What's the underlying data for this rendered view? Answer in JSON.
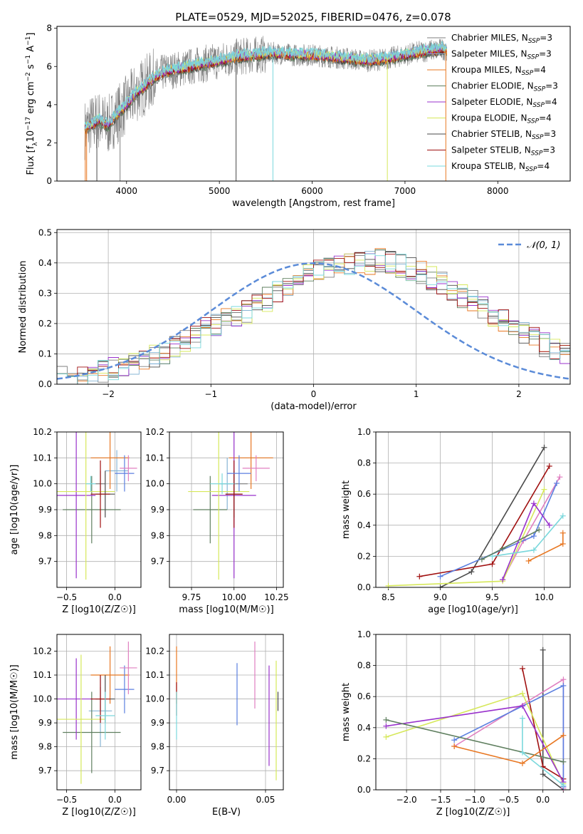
{
  "figure": {
    "title": "PLATE=0529, MJD=52025, FIBERID=0476, z=0.078"
  },
  "colors": {
    "Chabrier MILES": "#7f7f7f",
    "Salpeter MILES": "#87b5d5",
    "Kroupa MILES": "#e87722",
    "Chabrier ELODIE": "#5f7f5f",
    "Salpeter ELODIE": "#9932cc",
    "Kroupa ELODIE": "#d6e85a",
    "Chabrier STELIB": "#4a4a4a",
    "Salpeter STELIB": "#a01010",
    "Kroupa STELIB": "#7ad8dc",
    "extra_blue": "#5b7fe0",
    "extra_pink": "#e07fc0",
    "normal": "#5b8bd8"
  },
  "chart_data": [
    {
      "id": "spectrum",
      "type": "line",
      "xlabel": "wavelength [Angstrom, rest frame]",
      "ylabel": "Flux [f_λ10^-17 erg cm^-2 s^-1 A^-1]",
      "xlim": [
        3250,
        8780
      ],
      "ylim": [
        0,
        8.1
      ],
      "xticks": [
        4000,
        5000,
        6000,
        7000,
        8000
      ],
      "yticks": [
        0,
        2,
        4,
        6,
        8
      ],
      "wavelength_range": [
        3550,
        7450
      ],
      "continuum": {
        "x": [
          3550,
          3600,
          3700,
          3800,
          3900,
          4000,
          4100,
          4200,
          4300,
          4400,
          4600,
          4800,
          5000,
          5200,
          5400,
          5600,
          5800,
          6000,
          6200,
          6400,
          6600,
          6800,
          7000,
          7200,
          7400
        ],
        "y": [
          2.7,
          2.9,
          3.2,
          2.9,
          3.5,
          4.0,
          4.6,
          5.0,
          5.4,
          5.7,
          5.9,
          6.1,
          6.3,
          6.5,
          6.6,
          6.7,
          6.6,
          6.6,
          6.5,
          6.4,
          6.3,
          6.4,
          6.6,
          6.8,
          6.9
        ]
      },
      "legend_position": "upper right",
      "legend": [
        {
          "label": "Chabrier MILES, N",
          "sub": "SSP",
          "tail": "=3",
          "key": "Chabrier MILES"
        },
        {
          "label": "Salpeter MILES, N",
          "sub": "SSP",
          "tail": "=3",
          "key": "Salpeter MILES"
        },
        {
          "label": "Kroupa MILES, N",
          "sub": "SSP",
          "tail": "=4",
          "key": "Kroupa MILES"
        },
        {
          "label": "Chabrier ELODIE, N",
          "sub": "SSP",
          "tail": "=3",
          "key": "Chabrier ELODIE"
        },
        {
          "label": "Salpeter ELODIE, N",
          "sub": "SSP",
          "tail": "=4",
          "key": "Salpeter ELODIE"
        },
        {
          "label": "Kroupa ELODIE, N",
          "sub": "SSP",
          "tail": "=4",
          "key": "Kroupa ELODIE"
        },
        {
          "label": "Chabrier STELIB, N",
          "sub": "SSP",
          "tail": "=3",
          "key": "Chabrier STELIB"
        },
        {
          "label": "Salpeter STELIB, N",
          "sub": "SSP",
          "tail": "=3",
          "key": "Salpeter STELIB"
        },
        {
          "label": "Kroupa STELIB, N",
          "sub": "SSP",
          "tail": "=4",
          "key": "Kroupa STELIB"
        }
      ]
    },
    {
      "id": "residuals",
      "type": "histogram",
      "xlabel": "(data-model)/error",
      "ylabel": "Normed distribution",
      "xlim": [
        -2.5,
        2.5
      ],
      "ylim": [
        0,
        0.51
      ],
      "xticks": [
        -2,
        -1,
        0,
        1,
        2
      ],
      "yticks": [
        0.0,
        0.1,
        0.2,
        0.3,
        0.4,
        0.5
      ],
      "grid": true,
      "bin_width": 0.1,
      "bins_start": -2.5,
      "envelope": [
        0.02,
        0.02,
        0.03,
        0.035,
        0.04,
        0.05,
        0.06,
        0.07,
        0.08,
        0.09,
        0.1,
        0.12,
        0.14,
        0.16,
        0.18,
        0.2,
        0.21,
        0.23,
        0.24,
        0.26,
        0.28,
        0.3,
        0.32,
        0.34,
        0.36,
        0.37,
        0.38,
        0.39,
        0.39,
        0.4,
        0.4,
        0.41,
        0.4,
        0.39,
        0.38,
        0.37,
        0.35,
        0.33,
        0.31,
        0.29,
        0.27,
        0.25,
        0.23,
        0.21,
        0.19,
        0.17,
        0.15,
        0.13,
        0.11,
        0.1
      ],
      "normal": {
        "label": "𝒩(0, 1)",
        "mu": 0,
        "sigma": 1
      },
      "legend_position": "upper right"
    },
    {
      "id": "age_vs_Z",
      "type": "errorbar",
      "xlabel": "Z [log10(Z/Z☉)]",
      "ylabel": "age  [log10(age/yr)]",
      "xlim": [
        -0.6,
        0.27
      ],
      "ylim": [
        9.6,
        10.2
      ],
      "xticks": [
        -0.5,
        0.0
      ],
      "xticklabels": [
        "−0.5",
        "0.0"
      ],
      "yticks": [
        9.7,
        9.8,
        9.9,
        10.0,
        10.1,
        10.2
      ],
      "grid": true,
      "points": [
        {
          "key": "Chabrier MILES",
          "x": -0.15,
          "xerr": 0.05,
          "y": 10.0,
          "yerr": 0.05
        },
        {
          "key": "Salpeter MILES",
          "x": 0.02,
          "xerr": 0.12,
          "y": 10.05,
          "yerr": 0.08
        },
        {
          "key": "Kroupa MILES",
          "x": -0.05,
          "xerr": 0.2,
          "y": 10.1,
          "yerr": 0.12
        },
        {
          "key": "Chabrier ELODIE",
          "x": -0.24,
          "xerr": 0.3,
          "y": 9.9,
          "yerr": 0.13
        },
        {
          "key": "Salpeter ELODIE",
          "x": -0.4,
          "xerr": 0.2,
          "y": 9.955,
          "yerr": 0.32
        },
        {
          "key": "Kroupa ELODIE",
          "x": -0.3,
          "xerr": 0.3,
          "y": 9.97,
          "yerr": 0.34
        },
        {
          "key": "Chabrier STELIB",
          "x": -0.1,
          "xerr": 0.1,
          "y": 9.96,
          "yerr": 0.09
        },
        {
          "key": "Salpeter STELIB",
          "x": -0.15,
          "xerr": 0.1,
          "y": 9.96,
          "yerr": 0.13
        },
        {
          "key": "Kroupa STELIB",
          "x": -0.25,
          "xerr": 0.05,
          "y": 10.0,
          "yerr": 0.03
        },
        {
          "key": "extra_blue",
          "x": 0.1,
          "xerr": 0.1,
          "y": 10.04,
          "yerr": 0.07
        },
        {
          "key": "extra_pink",
          "x": 0.14,
          "xerr": 0.09,
          "y": 10.06,
          "yerr": 0.05
        }
      ]
    },
    {
      "id": "age_vs_mass",
      "type": "errorbar",
      "xlabel": "mass [log10(M/M☉)]",
      "ylabel": "",
      "xlim": [
        9.62,
        10.29
      ],
      "ylim": [
        9.6,
        10.2
      ],
      "xticks": [
        9.75,
        10.0,
        10.25
      ],
      "xticklabels": [
        "9.75",
        "10.00",
        "10.25"
      ],
      "yticks": [
        9.7,
        9.8,
        9.9,
        10.0,
        10.1,
        10.2
      ],
      "grid": true,
      "points": [
        {
          "key": "Chabrier MILES",
          "x": 10.0,
          "xerr": 0.08,
          "y": 10.0,
          "yerr": 0.05
        },
        {
          "key": "Salpeter MILES",
          "x": 9.96,
          "xerr": 0.05,
          "y": 10.0,
          "yerr": 0.1
        },
        {
          "key": "Kroupa MILES",
          "x": 10.1,
          "xerr": 0.13,
          "y": 10.1,
          "yerr": 0.12
        },
        {
          "key": "Chabrier ELODIE",
          "x": 9.86,
          "xerr": 0.1,
          "y": 9.9,
          "yerr": 0.13
        },
        {
          "key": "Salpeter ELODIE",
          "x": 10.0,
          "xerr": 0.13,
          "y": 9.955,
          "yerr": 0.32
        },
        {
          "key": "Kroupa ELODIE",
          "x": 9.91,
          "xerr": 0.18,
          "y": 9.97,
          "yerr": 0.34
        },
        {
          "key": "Chabrier STELIB",
          "x": 10.0,
          "xerr": 0.05,
          "y": 9.96,
          "yerr": 0.09
        },
        {
          "key": "Salpeter STELIB",
          "x": 10.0,
          "xerr": 0.05,
          "y": 9.96,
          "yerr": 0.13
        },
        {
          "key": "Kroupa STELIB",
          "x": 9.93,
          "xerr": 0.07,
          "y": 10.0,
          "yerr": 0.04
        },
        {
          "key": "extra_blue",
          "x": 10.03,
          "xerr": 0.07,
          "y": 10.04,
          "yerr": 0.07
        },
        {
          "key": "extra_pink",
          "x": 10.13,
          "xerr": 0.08,
          "y": 10.06,
          "yerr": 0.05
        }
      ]
    },
    {
      "id": "mass_weight_vs_age",
      "type": "line",
      "xlabel": "age  [log10(age/yr)]",
      "ylabel": "mass weight",
      "xlim": [
        8.38,
        10.25
      ],
      "ylim": [
        0,
        1.0
      ],
      "xticks": [
        8.5,
        9.0,
        9.5,
        10.0
      ],
      "xticklabels": [
        "8.5",
        "9.0",
        "9.5",
        "10.0"
      ],
      "yticks": [
        0.0,
        0.2,
        0.4,
        0.6,
        0.8,
        1.0
      ],
      "grid": true,
      "series": [
        {
          "key": "Chabrier STELIB",
          "x": [
            9.0,
            9.3,
            10.0
          ],
          "y": [
            0.0,
            0.1,
            0.9
          ]
        },
        {
          "key": "Salpeter STELIB",
          "x": [
            8.8,
            9.5,
            10.05
          ],
          "y": [
            0.07,
            0.15,
            0.78
          ]
        },
        {
          "key": "extra_pink",
          "x": [
            9.6,
            9.8,
            10.15
          ],
          "y": [
            0.05,
            0.3,
            0.71
          ]
        },
        {
          "key": "extra_blue",
          "x": [
            9.0,
            9.9,
            10.12
          ],
          "y": [
            0.07,
            0.33,
            0.67
          ]
        },
        {
          "key": "Kroupa ELODIE",
          "x": [
            8.5,
            9.6,
            10.0
          ],
          "y": [
            0.01,
            0.04,
            0.63
          ]
        },
        {
          "key": "Salpeter ELODIE",
          "x": [
            9.6,
            9.9,
            10.05
          ],
          "y": [
            0.05,
            0.54,
            0.4
          ]
        },
        {
          "key": "Kroupa STELIB",
          "x": [
            9.5,
            9.9,
            10.18
          ],
          "y": [
            0.2,
            0.24,
            0.46
          ]
        },
        {
          "key": "Chabrier ELODIE",
          "x": [
            9.4,
            9.6,
            9.95
          ],
          "y": [
            0.18,
            0.25,
            0.37
          ]
        },
        {
          "key": "Kroupa MILES",
          "x": [
            9.85,
            10.18,
            10.18
          ],
          "y": [
            0.17,
            0.28,
            0.35
          ]
        }
      ]
    },
    {
      "id": "mass_vs_Z",
      "type": "errorbar",
      "xlabel": "Z [log10(Z/Z☉)]",
      "ylabel": "mass [log10(M/M☉)]",
      "xlim": [
        -0.6,
        0.27
      ],
      "ylim": [
        9.62,
        10.27
      ],
      "xticks": [
        -0.5,
        0.0
      ],
      "xticklabels": [
        "−0.5",
        "0.0"
      ],
      "yticks": [
        9.7,
        9.8,
        9.9,
        10.0,
        10.1,
        10.2
      ],
      "grid": true,
      "points": [
        {
          "key": "Chabrier MILES",
          "x": -0.15,
          "xerr": 0.05,
          "y": 10.0,
          "yerr": 0.05
        },
        {
          "key": "Salpeter MILES",
          "x": -0.15,
          "xerr": 0.12,
          "y": 9.95,
          "yerr": 0.15
        },
        {
          "key": "Kroupa MILES",
          "x": -0.05,
          "xerr": 0.2,
          "y": 10.1,
          "yerr": 0.12
        },
        {
          "key": "Chabrier ELODIE",
          "x": -0.24,
          "xerr": 0.3,
          "y": 9.86,
          "yerr": 0.17
        },
        {
          "key": "Salpeter ELODIE",
          "x": -0.4,
          "xerr": 0.2,
          "y": 10.0,
          "yerr": 0.17
        },
        {
          "key": "Kroupa ELODIE",
          "x": -0.35,
          "xerr": 0.25,
          "y": 9.915,
          "yerr": 0.27
        },
        {
          "key": "Chabrier STELIB",
          "x": -0.1,
          "xerr": 0.1,
          "y": 10.0,
          "yerr": 0.1
        },
        {
          "key": "Salpeter STELIB",
          "x": -0.15,
          "xerr": 0.1,
          "y": 10.0,
          "yerr": 0.1
        },
        {
          "key": "Kroupa STELIB",
          "x": -0.1,
          "xerr": 0.1,
          "y": 9.93,
          "yerr": 0.1
        },
        {
          "key": "extra_blue",
          "x": 0.1,
          "xerr": 0.1,
          "y": 10.04,
          "yerr": 0.1
        },
        {
          "key": "extra_pink",
          "x": 0.14,
          "xerr": 0.09,
          "y": 10.13,
          "yerr": 0.11
        }
      ]
    },
    {
      "id": "mass_vs_ebv",
      "type": "errorbar",
      "xlabel": "E(B-V)",
      "ylabel": "",
      "xlim": [
        -0.004,
        0.06
      ],
      "ylim": [
        9.62,
        10.27
      ],
      "xticks": [
        0.0,
        0.05
      ],
      "xticklabels": [
        "0.00",
        "0.05"
      ],
      "yticks": [
        9.7,
        9.8,
        9.9,
        10.0,
        10.1,
        10.2
      ],
      "grid": true,
      "points": [
        {
          "key": "Kroupa MILES",
          "x": 0.0,
          "xerr": 0,
          "y": 10.1,
          "yerr": 0.12
        },
        {
          "key": "Salpeter STELIB",
          "x": 0.0,
          "xerr": 0,
          "y": 10.0,
          "yerr": 0.07
        },
        {
          "key": "Kroupa STELIB",
          "x": 0.0,
          "xerr": 0,
          "y": 9.93,
          "yerr": 0.1
        },
        {
          "key": "extra_blue",
          "x": 0.034,
          "xerr": 0,
          "y": 10.02,
          "yerr": 0.13
        },
        {
          "key": "extra_pink",
          "x": 0.044,
          "xerr": 0,
          "y": 10.1,
          "yerr": 0.14
        },
        {
          "key": "Salpeter ELODIE",
          "x": 0.052,
          "xerr": 0,
          "y": 9.93,
          "yerr": 0.21
        },
        {
          "key": "Kroupa ELODIE",
          "x": 0.056,
          "xerr": 0,
          "y": 9.91,
          "yerr": 0.25
        },
        {
          "key": "Chabrier STELIB",
          "x": 0.057,
          "xerr": 0,
          "y": 9.99,
          "yerr": 0.04
        }
      ]
    },
    {
      "id": "mass_weight_vs_Z",
      "type": "line",
      "xlabel": "Z [log10(Z/Z☉)]",
      "ylabel": "mass weight",
      "xlim": [
        -2.45,
        0.4
      ],
      "ylim": [
        0,
        1.0
      ],
      "xticks": [
        -2.0,
        -1.5,
        -1.0,
        -0.5,
        0.0
      ],
      "xticklabels": [
        "−2.0",
        "−1.5",
        "−1.0",
        "−0.5",
        "0.0"
      ],
      "yticks": [
        0.0,
        0.2,
        0.4,
        0.6,
        0.8,
        1.0
      ],
      "grid": true,
      "series": [
        {
          "key": "Chabrier STELIB",
          "x": [
            0.0,
            0.0,
            0.3
          ],
          "y": [
            0.9,
            0.1,
            0.0
          ]
        },
        {
          "key": "Salpeter STELIB",
          "x": [
            -0.3,
            0.0,
            0.3
          ],
          "y": [
            0.78,
            0.15,
            0.07
          ]
        },
        {
          "key": "extra_pink",
          "x": [
            -1.3,
            0.3,
            0.3
          ],
          "y": [
            0.28,
            0.71,
            0.01
          ]
        },
        {
          "key": "extra_blue",
          "x": [
            -1.3,
            0.3,
            0.3
          ],
          "y": [
            0.32,
            0.67,
            0.02
          ]
        },
        {
          "key": "Kroupa ELODIE",
          "x": [
            -2.3,
            -0.3,
            0.3
          ],
          "y": [
            0.34,
            0.62,
            0.04
          ]
        },
        {
          "key": "Salpeter ELODIE",
          "x": [
            -2.3,
            -0.3,
            0.3
          ],
          "y": [
            0.41,
            0.54,
            0.05
          ]
        },
        {
          "key": "Chabrier ELODIE",
          "x": [
            -2.3,
            0.3
          ],
          "y": [
            0.45,
            0.18
          ]
        },
        {
          "key": "Kroupa STELIB",
          "x": [
            -0.3,
            -0.3,
            0.3
          ],
          "y": [
            0.46,
            0.24,
            0.03
          ]
        },
        {
          "key": "Kroupa MILES",
          "x": [
            -1.3,
            -0.3,
            0.3
          ],
          "y": [
            0.28,
            0.17,
            0.35
          ]
        }
      ]
    }
  ]
}
